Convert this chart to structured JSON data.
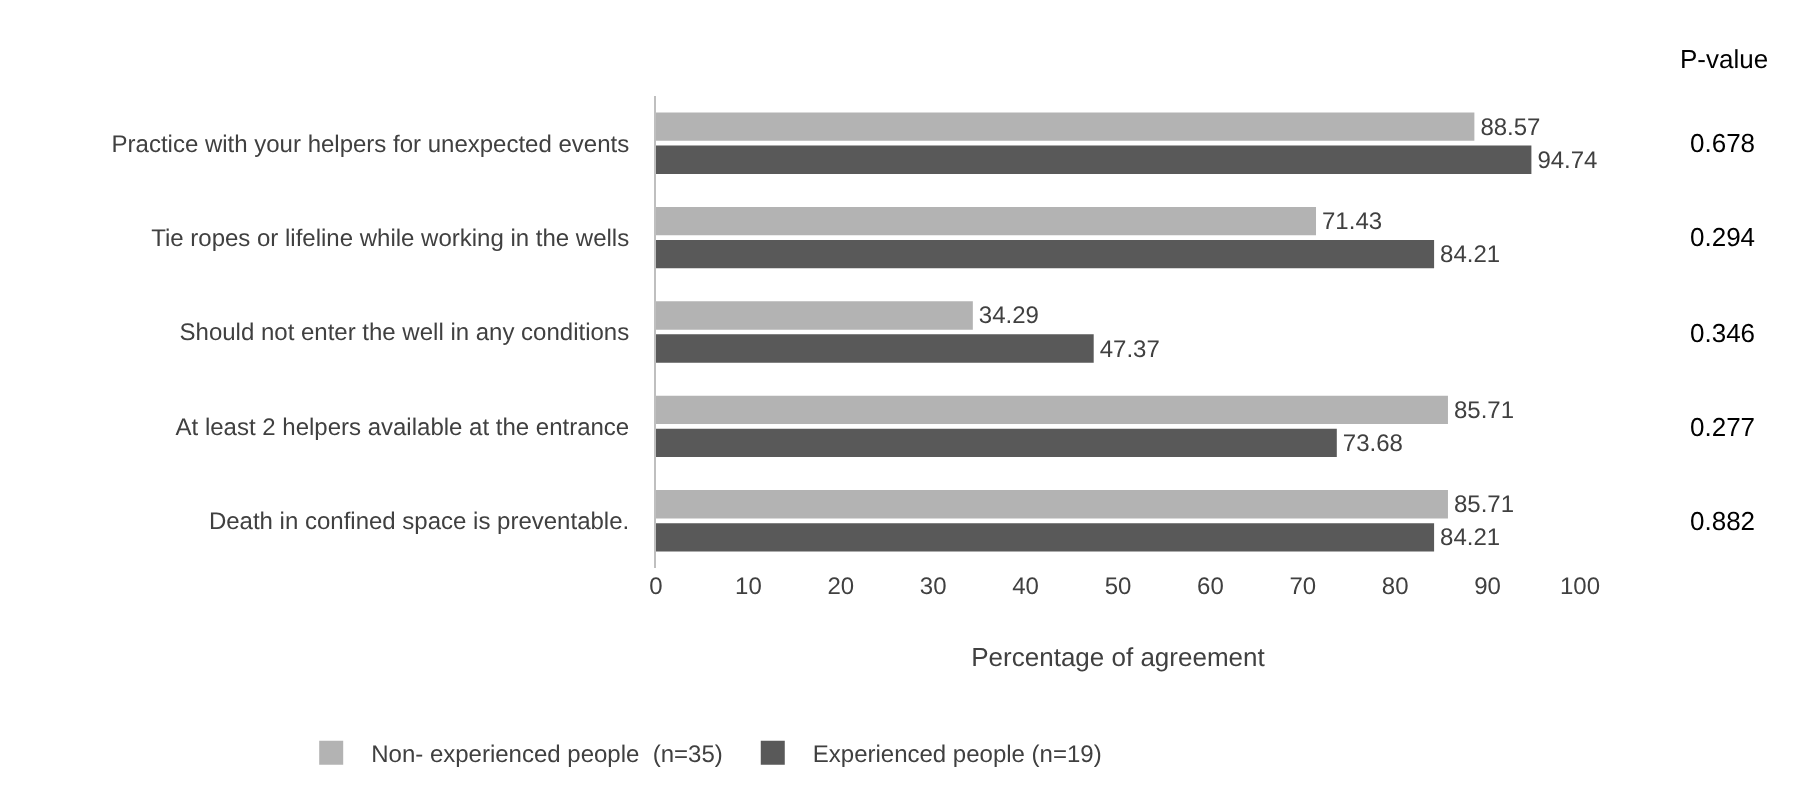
{
  "chart_data": {
    "type": "bar",
    "orientation": "horizontal",
    "xlabel": "Percentage of agreement",
    "categories": [
      "Practice with your helpers for unexpected events",
      "Tie ropes or lifeline while working in the wells",
      "Should not enter the well in any conditions",
      "At least 2 helpers available at the entrance",
      "Death in confined space is preventable."
    ],
    "series": [
      {
        "name": "Non- experienced people  (n=35)",
        "color": "#b3b3b3",
        "values": [
          88.57,
          71.43,
          34.29,
          85.71,
          85.71
        ]
      },
      {
        "name": "Experienced people (n=19)",
        "color": "#595959",
        "values": [
          94.74,
          84.21,
          47.37,
          73.68,
          84.21
        ]
      }
    ],
    "xlim": [
      0,
      100
    ],
    "xticks": [
      0,
      10,
      20,
      30,
      40,
      50,
      60,
      70,
      80,
      90,
      100
    ],
    "grid": false,
    "legend": "bottom",
    "data_labels": true,
    "annotations": [
      "P-value",
      "0.678",
      "0.294",
      "0.346",
      "0.277",
      "0.882"
    ]
  }
}
